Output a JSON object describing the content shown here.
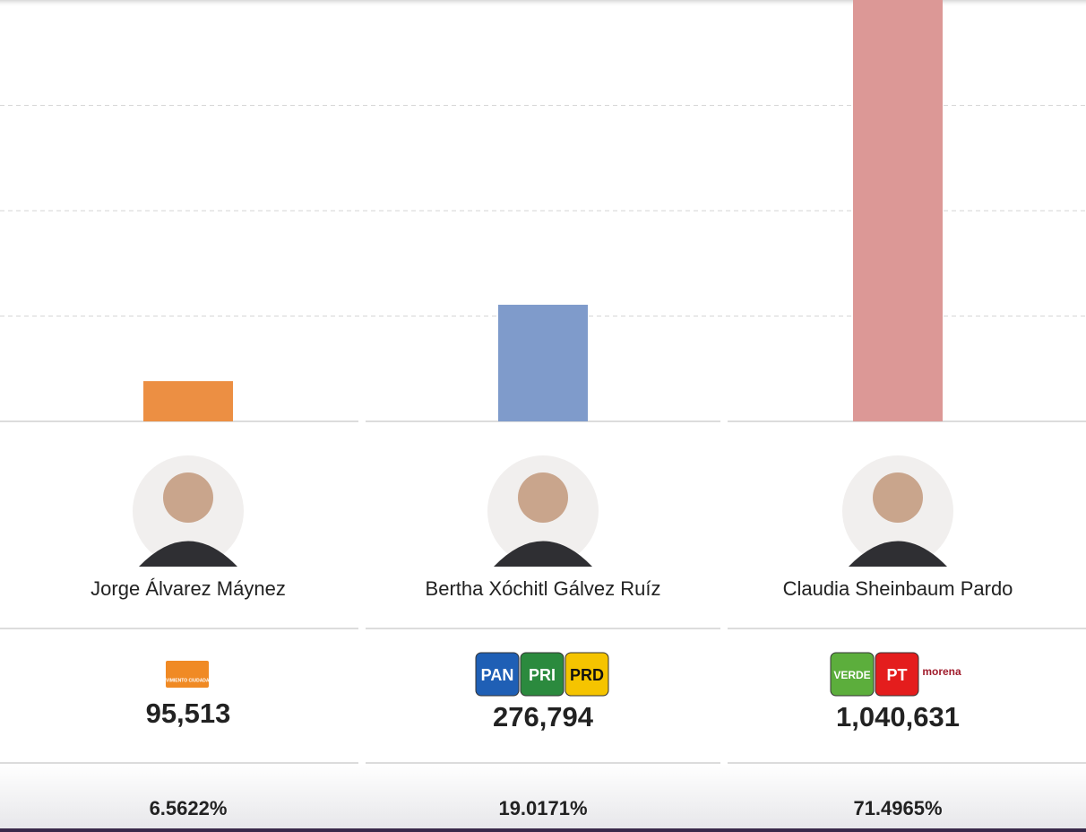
{
  "chart_data": {
    "type": "bar",
    "categories": [
      "Jorge Álvarez Máynez",
      "Bertha Xóchitl Gálvez Ruíz",
      "Claudia Sheinbaum Pardo"
    ],
    "values": [
      95513,
      276794,
      1040631
    ],
    "value_labels": [
      "95,513",
      "276,794",
      "1,040,631"
    ],
    "colors": [
      "#ec8f43",
      "#7f9bcb",
      "#dc9896"
    ],
    "shares": [
      6.5622,
      19.0171,
      71.4965
    ],
    "share_labels": [
      "6.5622%",
      "19.0171%",
      "71.4965%"
    ],
    "parties": [
      [
        "MOVIMIENTO CIUDADANO"
      ],
      [
        "PAN",
        "PRI",
        "PRD"
      ],
      [
        "VERDE",
        "PT",
        "morena"
      ]
    ],
    "party_colors": [
      [
        "#f08a24"
      ],
      [
        "#1f5fb5",
        "#2b8a3e",
        "#f5c400"
      ],
      [
        "#5cae3c",
        "#e41d1d",
        "#ffffff"
      ]
    ],
    "ylim": [
      0,
      1000000
    ],
    "yticks": [
      0,
      250000,
      500000,
      750000
    ],
    "grid": true
  }
}
